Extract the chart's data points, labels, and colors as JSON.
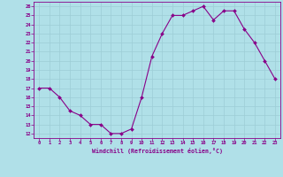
{
  "x": [
    0,
    1,
    2,
    3,
    4,
    5,
    6,
    7,
    8,
    9,
    10,
    11,
    12,
    13,
    14,
    15,
    16,
    17,
    18,
    19,
    20,
    21,
    22,
    23
  ],
  "y": [
    17,
    17,
    16,
    14.5,
    14,
    13,
    13,
    12,
    12,
    12.5,
    16,
    20.5,
    23,
    25,
    25,
    25.5,
    26,
    24.5,
    25.5,
    25.5,
    23.5,
    22,
    20,
    18
  ],
  "line_color": "#880088",
  "marker_color": "#880088",
  "bg_color": "#b0e0e8",
  "grid_color": "#9dcdd6",
  "xlabel": "Windchill (Refroidissement éolien,°C)",
  "xlabel_color": "#880088",
  "tick_color": "#880088",
  "spine_color": "#880088",
  "ylim": [
    11.5,
    26.5
  ],
  "xlim": [
    -0.5,
    23.5
  ],
  "yticks": [
    12,
    13,
    14,
    15,
    16,
    17,
    18,
    19,
    20,
    21,
    22,
    23,
    24,
    25,
    26
  ],
  "xticks": [
    0,
    1,
    2,
    3,
    4,
    5,
    6,
    7,
    8,
    9,
    10,
    11,
    12,
    13,
    14,
    15,
    16,
    17,
    18,
    19,
    20,
    21,
    22,
    23
  ]
}
